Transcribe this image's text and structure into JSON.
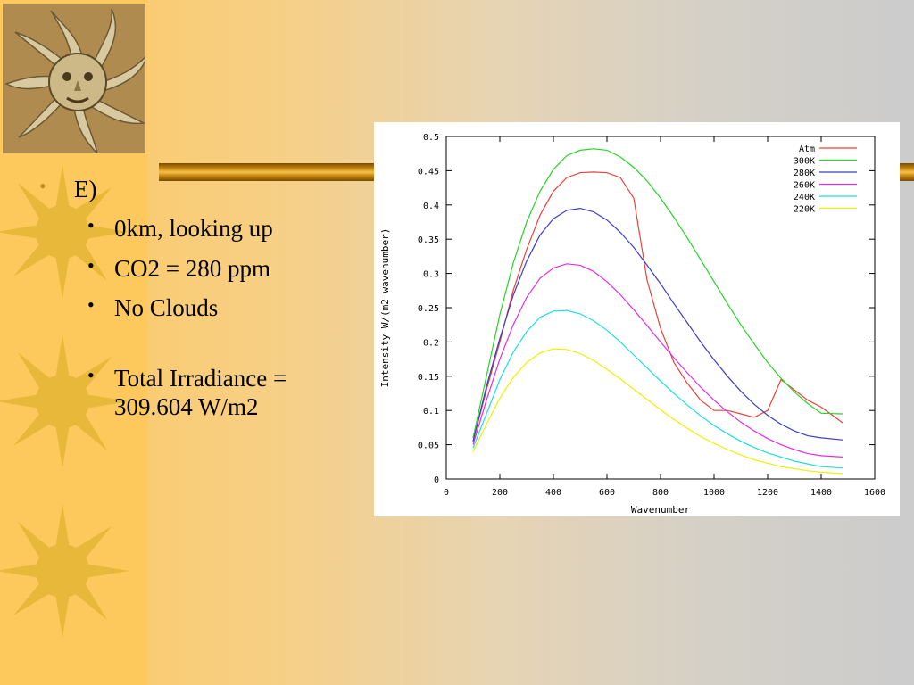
{
  "slide": {
    "heading": "E)",
    "bullets": [
      "0km, looking up",
      "CO2 = 280 ppm",
      "No Clouds",
      "Total Irradiance = 309.604 W/m2"
    ]
  },
  "colors": {
    "accent_orange": "#fec95c",
    "rule_gold": "#c98a10"
  },
  "icons": {
    "logo": "sun-face-icon",
    "decor": "sun-icon"
  },
  "chart_data": {
    "type": "line",
    "title": "",
    "xlabel": "Wavenumber",
    "ylabel": "Intensity W/(m2 wavenumber)",
    "xlim": [
      0,
      1600
    ],
    "ylim": [
      0,
      0.5
    ],
    "xticks": [
      0,
      200,
      400,
      600,
      800,
      1000,
      1200,
      1400,
      1600
    ],
    "yticks": [
      0,
      0.05,
      0.1,
      0.15,
      0.2,
      0.25,
      0.3,
      0.35,
      0.4,
      0.45,
      0.5
    ],
    "legend": "top-right",
    "x": [
      100,
      150,
      200,
      250,
      300,
      350,
      400,
      450,
      500,
      550,
      600,
      650,
      700,
      750,
      800,
      850,
      900,
      950,
      1000,
      1050,
      1100,
      1150,
      1200,
      1250,
      1300,
      1350,
      1400,
      1480
    ],
    "series": [
      {
        "name": "Atm",
        "color": "#e8423c",
        "values": [
          0.055,
          0.13,
          0.2,
          0.275,
          0.335,
          0.385,
          0.42,
          0.44,
          0.447,
          0.448,
          0.447,
          0.44,
          0.41,
          0.29,
          0.22,
          0.17,
          0.14,
          0.115,
          0.1,
          0.1,
          0.095,
          0.09,
          0.1,
          0.145,
          0.13,
          0.115,
          0.105,
          0.082
        ]
      },
      {
        "name": "300K",
        "color": "#27d427",
        "values": [
          0.06,
          0.15,
          0.24,
          0.315,
          0.375,
          0.42,
          0.452,
          0.472,
          0.48,
          0.482,
          0.48,
          0.47,
          0.455,
          0.435,
          0.41,
          0.382,
          0.352,
          0.32,
          0.288,
          0.256,
          0.225,
          0.197,
          0.17,
          0.147,
          0.127,
          0.11,
          0.096,
          0.095
        ]
      },
      {
        "name": "280K",
        "color": "#3a3ec8",
        "values": [
          0.055,
          0.135,
          0.205,
          0.268,
          0.318,
          0.356,
          0.38,
          0.392,
          0.395,
          0.39,
          0.378,
          0.36,
          0.338,
          0.312,
          0.285,
          0.256,
          0.228,
          0.2,
          0.174,
          0.15,
          0.128,
          0.109,
          0.093,
          0.08,
          0.07,
          0.063,
          0.06,
          0.057
        ]
      },
      {
        "name": "260K",
        "color": "#e32ee3",
        "values": [
          0.05,
          0.115,
          0.175,
          0.225,
          0.265,
          0.293,
          0.308,
          0.314,
          0.312,
          0.303,
          0.288,
          0.269,
          0.247,
          0.224,
          0.2,
          0.177,
          0.155,
          0.134,
          0.115,
          0.098,
          0.083,
          0.07,
          0.059,
          0.05,
          0.043,
          0.037,
          0.034,
          0.032
        ]
      },
      {
        "name": "240K",
        "color": "#1fdede",
        "values": [
          0.045,
          0.095,
          0.145,
          0.185,
          0.215,
          0.236,
          0.245,
          0.246,
          0.241,
          0.231,
          0.217,
          0.2,
          0.181,
          0.162,
          0.143,
          0.125,
          0.108,
          0.092,
          0.078,
          0.066,
          0.055,
          0.046,
          0.038,
          0.032,
          0.026,
          0.022,
          0.018,
          0.016
        ]
      },
      {
        "name": "220K",
        "color": "#f0f000",
        "values": [
          0.04,
          0.08,
          0.118,
          0.148,
          0.17,
          0.184,
          0.19,
          0.189,
          0.183,
          0.173,
          0.16,
          0.146,
          0.131,
          0.116,
          0.101,
          0.087,
          0.074,
          0.062,
          0.052,
          0.043,
          0.035,
          0.028,
          0.023,
          0.018,
          0.015,
          0.012,
          0.01,
          0.008
        ]
      }
    ]
  }
}
